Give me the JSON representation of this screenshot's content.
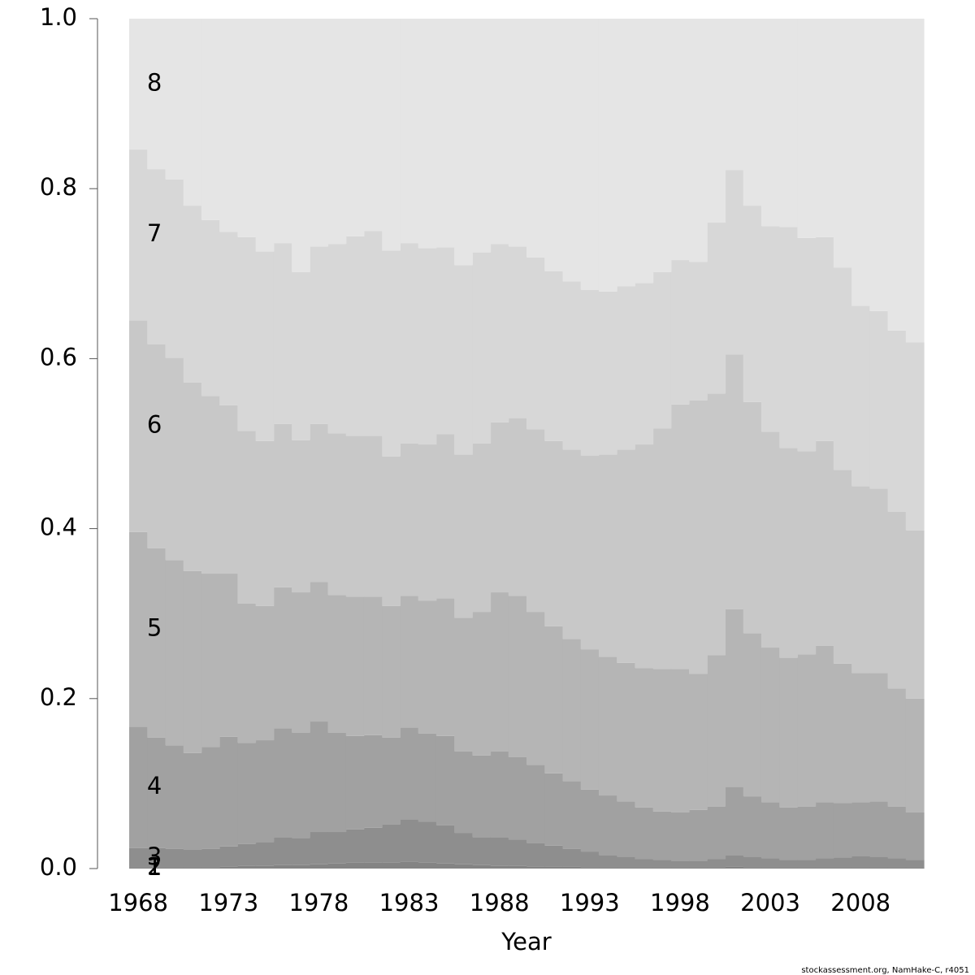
{
  "chart_data": {
    "type": "stacked-step-area",
    "x_label": "Year",
    "footer": "stockassessment.org, NamHake-C, r4051",
    "x": [
      1968,
      1969,
      1970,
      1971,
      1972,
      1973,
      1974,
      1975,
      1976,
      1977,
      1978,
      1979,
      1980,
      1981,
      1982,
      1983,
      1984,
      1985,
      1986,
      1987,
      1988,
      1989,
      1990,
      1991,
      1992,
      1993,
      1994,
      1995,
      1996,
      1997,
      1998,
      1999,
      2000,
      2001,
      2002,
      2003,
      2004,
      2005,
      2006,
      2007,
      2008,
      2009,
      2010,
      2011
    ],
    "xlim": [
      1967.5,
      2011.5
    ],
    "xticks": [
      1968,
      1973,
      1978,
      1983,
      1988,
      1993,
      1998,
      2003,
      2008
    ],
    "ylim": [
      0,
      1
    ],
    "yticks": [
      {
        "value": 0,
        "label": "0.0"
      },
      {
        "value": 0.2,
        "label": "0.2"
      },
      {
        "value": 0.4,
        "label": "0.4"
      },
      {
        "value": 0.6,
        "label": "0.6"
      },
      {
        "value": 0.8,
        "label": "0.8"
      },
      {
        "value": 1,
        "label": "1.0"
      }
    ],
    "series": [
      {
        "name": "1",
        "color": "#7a7a7a",
        "values": [
          0,
          0,
          0,
          0,
          0,
          0,
          0,
          0,
          0,
          0,
          0,
          0,
          0,
          0,
          0,
          0,
          0,
          0,
          0,
          0,
          0,
          0,
          0,
          0,
          0,
          0,
          0,
          0,
          0,
          0,
          0,
          0,
          0,
          0,
          0,
          0,
          0,
          0,
          0,
          0,
          0,
          0,
          0,
          0
        ]
      },
      {
        "name": "2",
        "color": "#848484",
        "values": [
          0.001,
          0.001,
          0.001,
          0.001,
          0.001,
          0.002,
          0.003,
          0.003,
          0.004,
          0.004,
          0.005,
          0.006,
          0.007,
          0.007,
          0.007,
          0.008,
          0.007,
          0.006,
          0.005,
          0.004,
          0.003,
          0.003,
          0.002,
          0.002,
          0.002,
          0.001,
          0.001,
          0.001,
          0.001,
          0.001,
          0.001,
          0.001,
          0.001,
          0.002,
          0.001,
          0.001,
          0.001,
          0.001,
          0.001,
          0.001,
          0.001,
          0.001,
          0.001,
          0.001
        ]
      },
      {
        "name": "3",
        "color": "#8e8e8e",
        "values": [
          0.023,
          0.023,
          0.022,
          0.021,
          0.022,
          0.024,
          0.026,
          0.028,
          0.033,
          0.032,
          0.038,
          0.037,
          0.039,
          0.041,
          0.045,
          0.05,
          0.048,
          0.045,
          0.037,
          0.033,
          0.034,
          0.031,
          0.028,
          0.025,
          0.021,
          0.019,
          0.015,
          0.013,
          0.01,
          0.009,
          0.008,
          0.008,
          0.01,
          0.014,
          0.013,
          0.011,
          0.009,
          0.009,
          0.011,
          0.012,
          0.014,
          0.013,
          0.011,
          0.009
        ]
      },
      {
        "name": "4",
        "color": "#a1a1a1",
        "values": [
          0.143,
          0.13,
          0.122,
          0.114,
          0.12,
          0.129,
          0.119,
          0.12,
          0.128,
          0.124,
          0.13,
          0.117,
          0.11,
          0.109,
          0.102,
          0.108,
          0.104,
          0.105,
          0.096,
          0.096,
          0.101,
          0.097,
          0.092,
          0.085,
          0.08,
          0.073,
          0.07,
          0.065,
          0.061,
          0.057,
          0.057,
          0.06,
          0.062,
          0.08,
          0.071,
          0.066,
          0.062,
          0.063,
          0.066,
          0.064,
          0.063,
          0.065,
          0.061,
          0.056
        ]
      },
      {
        "name": "5",
        "color": "#b5b5b5",
        "values": [
          0.229,
          0.223,
          0.218,
          0.214,
          0.204,
          0.192,
          0.164,
          0.158,
          0.166,
          0.165,
          0.164,
          0.162,
          0.164,
          0.163,
          0.155,
          0.155,
          0.156,
          0.162,
          0.157,
          0.169,
          0.187,
          0.19,
          0.18,
          0.173,
          0.167,
          0.165,
          0.163,
          0.163,
          0.164,
          0.168,
          0.169,
          0.16,
          0.178,
          0.209,
          0.192,
          0.182,
          0.176,
          0.179,
          0.184,
          0.164,
          0.152,
          0.151,
          0.139,
          0.134
        ]
      },
      {
        "name": "6",
        "color": "#c8c8c8",
        "values": [
          0.249,
          0.24,
          0.238,
          0.222,
          0.209,
          0.198,
          0.203,
          0.194,
          0.192,
          0.179,
          0.186,
          0.19,
          0.189,
          0.189,
          0.176,
          0.179,
          0.184,
          0.193,
          0.192,
          0.198,
          0.2,
          0.209,
          0.215,
          0.218,
          0.223,
          0.228,
          0.238,
          0.251,
          0.263,
          0.283,
          0.311,
          0.322,
          0.308,
          0.3,
          0.272,
          0.254,
          0.247,
          0.239,
          0.241,
          0.228,
          0.22,
          0.217,
          0.208,
          0.198
        ]
      },
      {
        "name": "7",
        "color": "#d7d7d7",
        "values": [
          0.201,
          0.206,
          0.21,
          0.208,
          0.207,
          0.204,
          0.228,
          0.223,
          0.213,
          0.198,
          0.209,
          0.223,
          0.235,
          0.241,
          0.242,
          0.236,
          0.231,
          0.22,
          0.223,
          0.225,
          0.21,
          0.202,
          0.202,
          0.2,
          0.198,
          0.195,
          0.192,
          0.192,
          0.19,
          0.184,
          0.17,
          0.163,
          0.201,
          0.217,
          0.231,
          0.242,
          0.26,
          0.251,
          0.24,
          0.238,
          0.212,
          0.209,
          0.213,
          0.221
        ]
      },
      {
        "name": "8",
        "color": "#e5e5e5",
        "values": [
          0.154,
          0.177,
          0.189,
          0.22,
          0.237,
          0.251,
          0.257,
          0.274,
          0.264,
          0.298,
          0.268,
          0.265,
          0.256,
          0.25,
          0.273,
          0.264,
          0.27,
          0.269,
          0.29,
          0.275,
          0.265,
          0.268,
          0.281,
          0.297,
          0.309,
          0.319,
          0.321,
          0.315,
          0.311,
          0.298,
          0.284,
          0.286,
          0.24,
          0.178,
          0.22,
          0.244,
          0.245,
          0.258,
          0.257,
          0.293,
          0.338,
          0.344,
          0.367,
          0.381
        ]
      }
    ]
  }
}
